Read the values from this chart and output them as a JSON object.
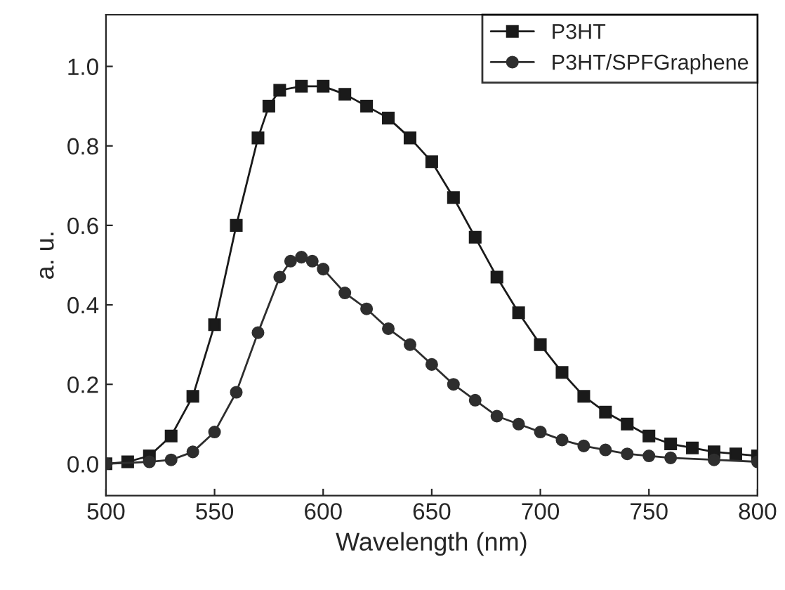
{
  "chart_data": {
    "type": "line",
    "xlabel": "Wavelength (nm)",
    "ylabel": "a. u.",
    "xlim": [
      500,
      800
    ],
    "xticks": [
      500,
      550,
      600,
      650,
      700,
      750,
      800
    ],
    "ylim": [
      -0.08,
      1.13
    ],
    "yticks": [
      {
        "value": 0,
        "label": "0.0"
      },
      {
        "value": 0.2,
        "label": "0.2"
      },
      {
        "value": 0.4,
        "label": "0.4"
      },
      {
        "value": 0.6,
        "label": "0.6"
      },
      {
        "value": 0.8,
        "label": "0.8"
      },
      {
        "value": 1.0,
        "label": "1.0"
      }
    ],
    "grid": false,
    "legend": "top right",
    "series": [
      {
        "name": "P3HT",
        "color": "#1a1a1a",
        "marker": "square",
        "x": [
          500,
          510,
          520,
          530,
          540,
          550,
          560,
          570,
          575,
          580,
          590,
          600,
          610,
          620,
          630,
          640,
          650,
          660,
          670,
          680,
          690,
          700,
          710,
          720,
          730,
          740,
          750,
          760,
          770,
          780,
          790,
          800
        ],
        "values": [
          0.0,
          0.005,
          0.02,
          0.07,
          0.17,
          0.35,
          0.6,
          0.82,
          0.9,
          0.94,
          0.95,
          0.95,
          0.93,
          0.9,
          0.87,
          0.82,
          0.76,
          0.67,
          0.57,
          0.47,
          0.38,
          0.3,
          0.23,
          0.17,
          0.13,
          0.1,
          0.07,
          0.05,
          0.04,
          0.03,
          0.025,
          0.02
        ]
      },
      {
        "name": "P3HT/SPFGraphene",
        "color": "#2e2e2e",
        "marker": "circle",
        "x": [
          500,
          520,
          530,
          540,
          550,
          560,
          570,
          580,
          585,
          590,
          595,
          600,
          610,
          620,
          630,
          640,
          650,
          660,
          670,
          680,
          690,
          700,
          710,
          720,
          730,
          740,
          750,
          760,
          780,
          800
        ],
        "values": [
          0.0,
          0.005,
          0.01,
          0.03,
          0.08,
          0.18,
          0.33,
          0.47,
          0.51,
          0.52,
          0.51,
          0.49,
          0.43,
          0.39,
          0.34,
          0.3,
          0.25,
          0.2,
          0.16,
          0.12,
          0.1,
          0.08,
          0.06,
          0.045,
          0.035,
          0.025,
          0.02,
          0.015,
          0.01,
          0.005
        ]
      }
    ]
  }
}
